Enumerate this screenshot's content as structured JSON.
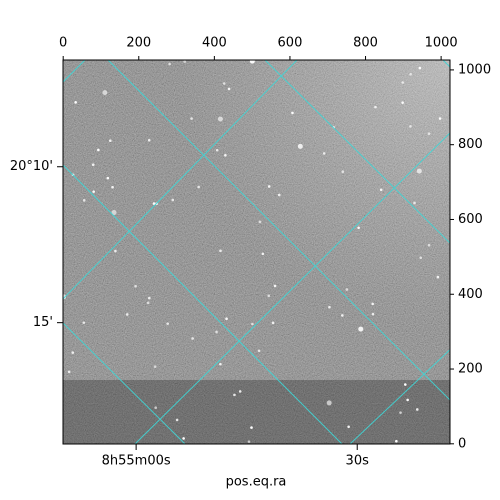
{
  "chart_data": {
    "type": "image",
    "xlabel": "pos.eq.ra",
    "xlim": [
      -0.5,
      1023.5
    ],
    "ylim": [
      -0.5,
      1026.5
    ],
    "xticks": [
      0,
      200,
      400,
      600,
      800,
      1000
    ],
    "yticks": [
      0,
      200,
      400,
      600,
      800,
      1000
    ],
    "ra_ticks": [
      {
        "value": 193,
        "label": "8h55m00s"
      },
      {
        "value": 778,
        "label": "30s"
      }
    ],
    "dec_ticks": [
      {
        "value": 741,
        "label": "20°10'"
      },
      {
        "value": 324,
        "label": "15'"
      }
    ]
  }
}
